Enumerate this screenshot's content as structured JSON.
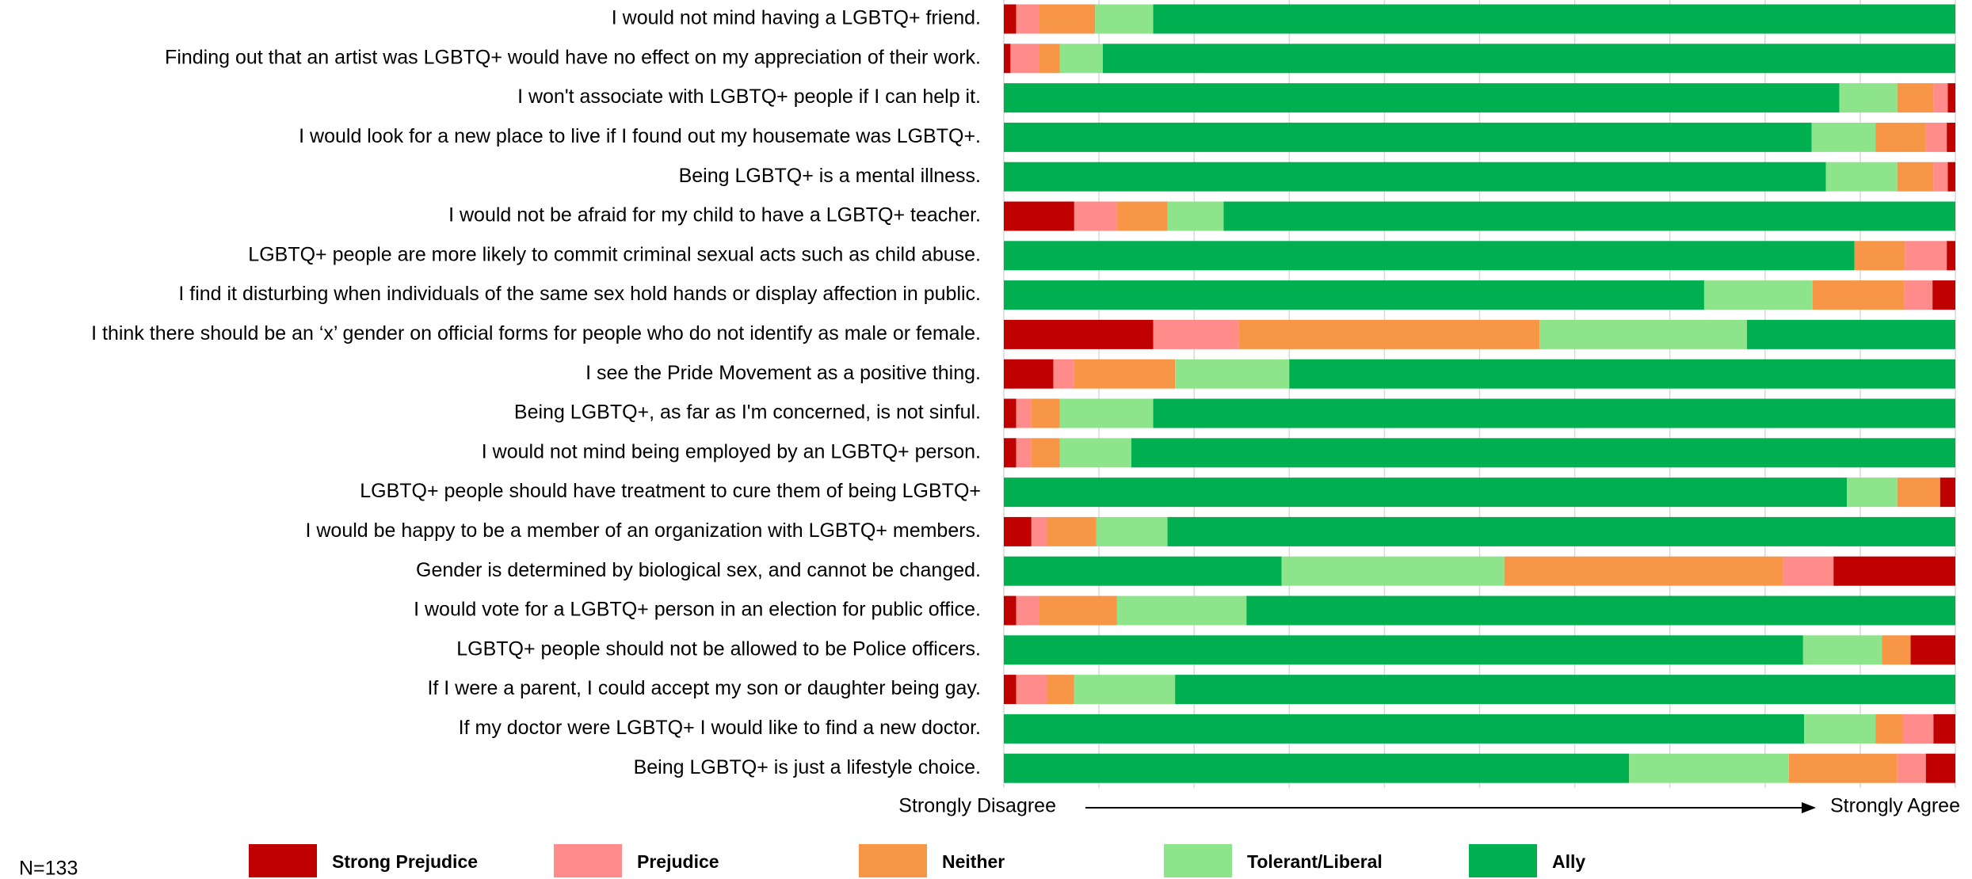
{
  "chart_data": {
    "type": "stacked_bar_horizontal",
    "categories": [
      "I would not mind having a LGBTQ+ friend.",
      "Finding out that an artist was LGBTQ+ would have no effect on my appreciation of their work.",
      "I won't associate with LGBTQ+ people if I can help it.",
      "I would look for a new place to live if I found out my housemate was LGBTQ+.",
      "Being LGBTQ+ is a mental illness.",
      "I would not be afraid for my child to have a LGBTQ+ teacher.",
      "LGBTQ+ people are more likely to commit criminal sexual acts such as child abuse.",
      "I find it disturbing when individuals of the same sex hold hands or display affection in public.",
      "I think there should be an ‘x’ gender on official forms for people who do not identify as male or female.",
      "I see the Pride Movement as a positive thing.",
      "Being LGBTQ+, as far as I'm concerned, is not sinful.",
      "I would not mind being employed by an LGBTQ+ person.",
      "LGBTQ+ people should have treatment to cure them of being LGBTQ+",
      "I would be happy to be a member of an organization with LGBTQ+ members.",
      "Gender is determined by biological sex, and cannot be changed.",
      "I would vote for a LGBTQ+ person in an election for public office.",
      "LGBTQ+ people should not be allowed to be Police officers.",
      "If I were a parent, I could accept my son or daughter being gay.",
      "If my doctor were LGBTQ+ I would like to find a new doctor.",
      "Being LGBTQ+ is just a lifestyle choice."
    ],
    "reversed": [
      false,
      false,
      true,
      true,
      true,
      false,
      true,
      true,
      false,
      false,
      false,
      false,
      true,
      false,
      true,
      false,
      true,
      false,
      true,
      true
    ],
    "series": [
      {
        "name": "Strong Prejudice",
        "color": "#c00000",
        "values": [
          1.3,
          0.7,
          0.8,
          0.9,
          0.8,
          7.4,
          0.9,
          2.4,
          15.7,
          5.2,
          1.3,
          1.3,
          1.6,
          2.9,
          12.8,
          1.3,
          4.7,
          1.3,
          2.3,
          3.1
        ]
      },
      {
        "name": "Prejudice",
        "color": "#ff8b8b",
        "values": [
          2.4,
          3.0,
          1.5,
          2.2,
          1.5,
          4.5,
          4.4,
          3.0,
          9.0,
          2.2,
          1.6,
          1.6,
          0,
          1.6,
          5.3,
          2.4,
          0,
          3.2,
          3.2,
          3.0
        ]
      },
      {
        "name": "Neither",
        "color": "#f79646",
        "values": [
          5.9,
          2.2,
          3.8,
          5.3,
          3.8,
          5.3,
          5.3,
          9.6,
          31.6,
          10.6,
          3.0,
          3.0,
          4.5,
          5.2,
          29.3,
          8.2,
          3.0,
          2.9,
          2.9,
          11.4
        ]
      },
      {
        "name": "Tolerant/Liberal",
        "color": "#8ee48b",
        "values": [
          6.1,
          4.5,
          6.1,
          6.7,
          7.5,
          5.9,
          0,
          11.4,
          21.8,
          12.0,
          9.8,
          7.5,
          5.3,
          7.5,
          23.4,
          13.6,
          8.3,
          10.6,
          7.5,
          16.8
        ]
      },
      {
        "name": "Ally",
        "color": "#00b050",
        "values": [
          84.3,
          89.6,
          87.8,
          84.9,
          86.4,
          76.9,
          89.4,
          73.6,
          21.9,
          70.0,
          84.3,
          86.6,
          88.6,
          82.8,
          29.2,
          74.5,
          84.0,
          82.0,
          84.1,
          65.7
        ]
      }
    ],
    "xlim": [
      0,
      100
    ],
    "xgrid": [
      0,
      10,
      20,
      30,
      40,
      50,
      60,
      70,
      80,
      90,
      100
    ],
    "axis_left_label": "Strongly Disagree",
    "axis_right_label": "Strongly Agree",
    "note": "N=133"
  }
}
